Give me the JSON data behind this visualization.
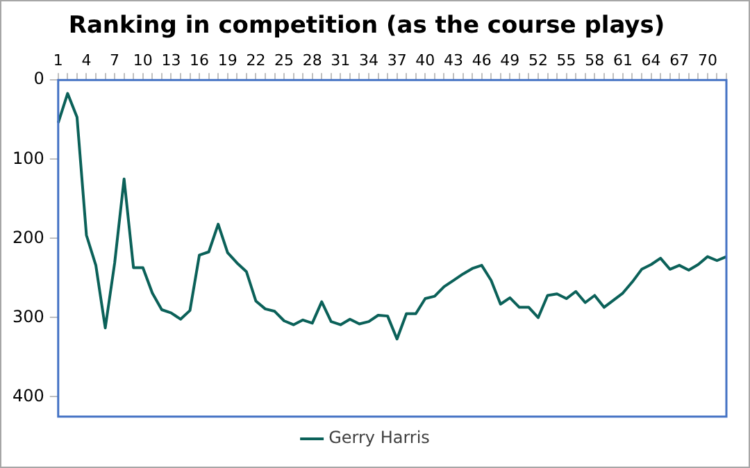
{
  "chart_data": {
    "type": "line",
    "title": "Ranking in competition (as the course plays)",
    "categories": [
      "1",
      null,
      null,
      "4",
      null,
      null,
      "7",
      null,
      null,
      "10",
      null,
      null,
      "13",
      null,
      null,
      "16",
      null,
      null,
      "19",
      null,
      null,
      "22",
      null,
      null,
      "25",
      null,
      null,
      "28",
      null,
      null,
      "31",
      null,
      null,
      "34",
      null,
      null,
      "37",
      null,
      null,
      "40",
      null,
      null,
      "43",
      null,
      null,
      "46",
      null,
      null,
      "49",
      null,
      null,
      "52",
      null,
      null,
      "55",
      null,
      null,
      "58",
      null,
      null,
      "61",
      null,
      null,
      "64",
      null,
      null,
      "67",
      null,
      null,
      "70",
      null,
      null
    ],
    "series": [
      {
        "name": "Gerry Harris",
        "color": "#0b6159",
        "values": [
          54,
          17,
          47,
          196,
          234,
          313,
          231,
          125,
          237,
          237,
          269,
          290,
          294,
          302,
          291,
          221,
          217,
          182,
          218,
          231,
          242,
          279,
          289,
          292,
          304,
          309,
          303,
          307,
          280,
          305,
          309,
          302,
          308,
          305,
          297,
          298,
          327,
          295,
          295,
          276,
          273,
          261,
          253,
          245,
          238,
          234,
          253,
          283,
          275,
          287,
          287,
          300,
          272,
          270,
          276,
          267,
          281,
          272,
          287,
          278,
          269,
          255,
          239,
          233,
          225,
          239,
          234,
          240,
          233,
          223,
          228,
          223
        ]
      }
    ],
    "ylim": [
      425,
      0
    ],
    "yticks": [
      0,
      100,
      200,
      300,
      400
    ],
    "legend": "bottom",
    "marker": "none"
  }
}
